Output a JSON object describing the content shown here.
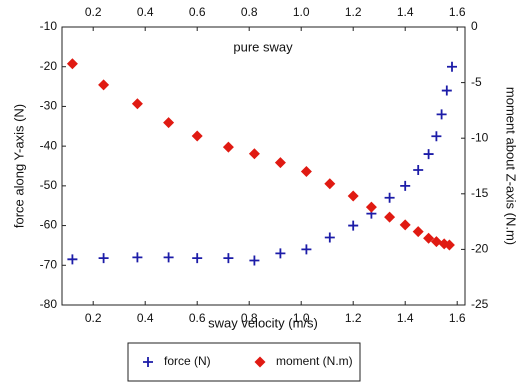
{
  "chart_data": {
    "type": "scatter",
    "title": "pure sway",
    "xlabel": "sway velocity (m/s)",
    "ylabel": "force along Y-axis (N)",
    "y2label": "moment about Z-axis (N.m)",
    "xlim": [
      0.08,
      1.63
    ],
    "ylim": [
      -80,
      -10
    ],
    "y2lim": [
      -25,
      0
    ],
    "xticks": [
      0.2,
      0.4,
      0.6,
      0.8,
      {
        "value": 1,
        "label": "1.0"
      },
      1.2,
      1.4,
      1.6
    ],
    "yticks": [
      -80,
      -70,
      -60,
      -50,
      -40,
      -30,
      -20,
      -10
    ],
    "y2ticks": [
      -25,
      -20,
      -15,
      -10,
      -5,
      0
    ],
    "legend": "bottom",
    "series": [
      {
        "name": "force (N)",
        "color": "#1c1ca8",
        "marker": "plus",
        "x": [
          0.12,
          0.24,
          0.37,
          0.49,
          0.6,
          0.72,
          0.82,
          0.92,
          1.02,
          1.11,
          1.2,
          1.27,
          1.34,
          1.4,
          1.45,
          1.49,
          1.52,
          1.54,
          1.56,
          1.58
        ],
        "values": [
          -68.5,
          -68.2,
          -68,
          -68,
          -68.2,
          -68.2,
          -68.8,
          -67,
          -66,
          -63,
          -60,
          -57,
          -53,
          -50,
          -46,
          -42,
          -37.5,
          -32,
          -26,
          -20
        ]
      },
      {
        "name": "moment (N.m)",
        "color": "#e01a12",
        "marker": "diamond",
        "axis": "y2",
        "x": [
          0.12,
          0.24,
          0.37,
          0.49,
          0.6,
          0.72,
          0.82,
          0.92,
          1.02,
          1.11,
          1.2,
          1.27,
          1.34,
          1.4,
          1.45,
          1.49,
          1.52,
          1.55,
          1.57
        ],
        "values": [
          -3.3,
          -5.2,
          -6.9,
          -8.6,
          -9.8,
          -10.8,
          -11.4,
          -12.2,
          -13,
          -14.1,
          -15.2,
          -16.2,
          -17.1,
          -17.8,
          -18.4,
          -19,
          -19.3,
          -19.5,
          -19.6
        ]
      }
    ]
  }
}
